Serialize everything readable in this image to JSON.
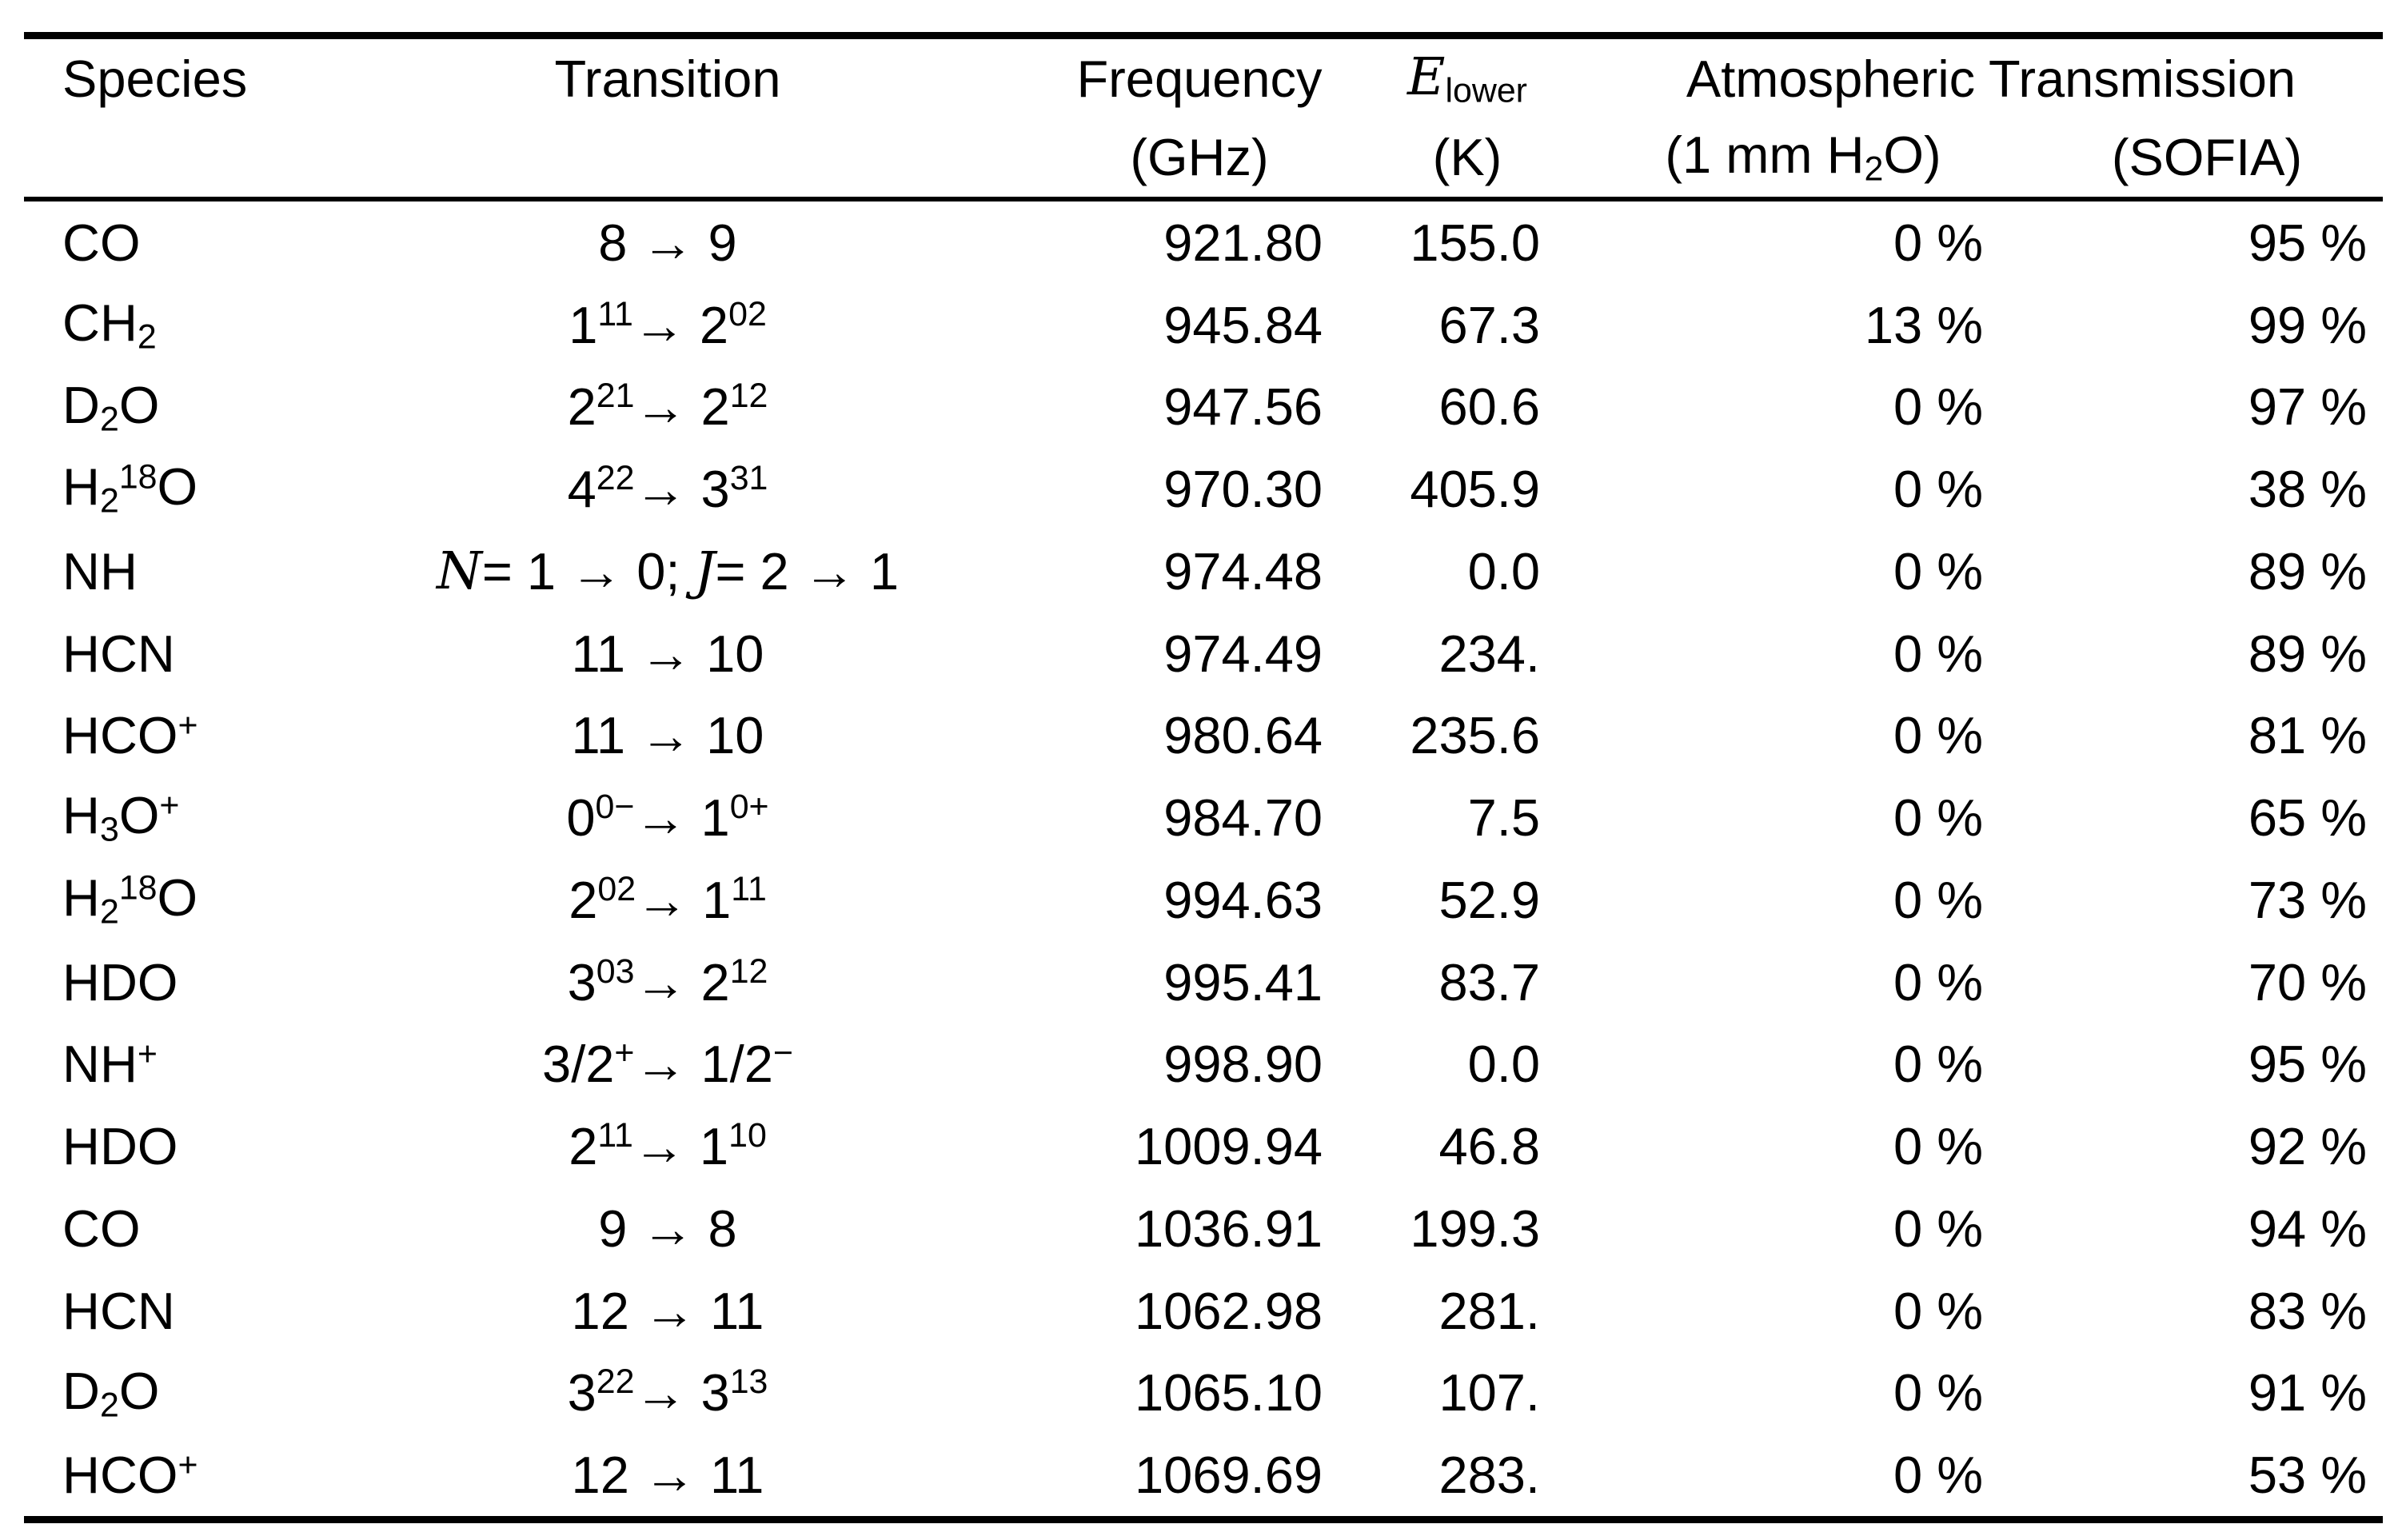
{
  "page": {
    "background_color": "#ffffff",
    "text_color": "#000000"
  },
  "table": {
    "header": {
      "species": "Species",
      "transition": "Transition",
      "frequency": "Frequency",
      "frequency_unit": "(GHz)",
      "e_lower": "*E*_{lower}",
      "e_lower_unit": "(K)",
      "atm_transmission_span": "Atmospheric Transmission",
      "atmospheric_unit": "(1 mm H_{2}O)",
      "sofia_unit": "(SOFIA)"
    },
    "rows": [
      {
        "species": "CO",
        "transition": "8 → 9",
        "frequency": "921.80",
        "e_lower": "155.0",
        "atmospheric": "0 %",
        "transmission": "95 %"
      },
      {
        "species": "CH_{2}",
        "transition": "1_{11} → 2_{02}",
        "frequency": "945.84",
        "e_lower": "67.3",
        "atmospheric": "13 %",
        "transmission": "99 %"
      },
      {
        "species": "D_{2}O",
        "transition": "2_{21} → 2_{12}",
        "frequency": "947.56",
        "e_lower": "60.6",
        "atmospheric": "0 %",
        "transmission": "97 %"
      },
      {
        "species": "H_{2}^{18}O",
        "transition": "4_{22} → 3_{31}",
        "frequency": "970.30",
        "e_lower": "405.9",
        "atmospheric": "0 %",
        "transmission": "38 %"
      },
      {
        "species": "NH",
        "transition": "*N* = 1 → 0;  *J* = 2 → 1",
        "frequency": "974.48",
        "e_lower": "0.0",
        "atmospheric": "0 %",
        "transmission": "89 %"
      },
      {
        "species": "HCN",
        "transition": "11 → 10",
        "frequency": "974.49",
        "e_lower": "234.",
        "atmospheric": "0 %",
        "transmission": "89 %"
      },
      {
        "species": "HCO^{+}",
        "transition": "11 → 10",
        "frequency": "980.64",
        "e_lower": "235.6",
        "atmospheric": "0 %",
        "transmission": "81 %"
      },
      {
        "species": "H_{3}O^{+}",
        "transition": "0_{0}^{−} → 1_{0}^{+}",
        "frequency": "984.70",
        "e_lower": "7.5",
        "atmospheric": "0 %",
        "transmission": "65 %"
      },
      {
        "species": "H_{2}^{18}O",
        "transition": "2_{02} → 1_{11}",
        "frequency": "994.63",
        "e_lower": "52.9",
        "atmospheric": "0 %",
        "transmission": "73 %"
      },
      {
        "species": "HDO",
        "transition": "3_{03} → 2_{12}",
        "frequency": "995.41",
        "e_lower": "83.7",
        "atmospheric": "0 %",
        "transmission": "70 %"
      },
      {
        "species": "NH^{+}",
        "transition": "3/2^{+} → 1/2^{−}",
        "frequency": "998.90",
        "e_lower": "0.0",
        "atmospheric": "0 %",
        "transmission": "95 %"
      },
      {
        "species": "HDO",
        "transition": "2_{11} → 1_{10}",
        "frequency": "1009.94",
        "e_lower": "46.8",
        "atmospheric": "0 %",
        "transmission": "92 %"
      },
      {
        "species": "CO",
        "transition": "9 → 8",
        "frequency": "1036.91",
        "e_lower": "199.3",
        "atmospheric": "0 %",
        "transmission": "94 %"
      },
      {
        "species": "HCN",
        "transition": "12 → 11",
        "frequency": "1062.98",
        "e_lower": "281.",
        "atmospheric": "0 %",
        "transmission": "83 %"
      },
      {
        "species": "D_{2}O",
        "transition": "3_{22} → 3_{13}",
        "frequency": "1065.10",
        "e_lower": "107.",
        "atmospheric": "0 %",
        "transmission": "91 %"
      },
      {
        "species": "HCO^{+}",
        "transition": "12 → 11",
        "frequency": "1069.69",
        "e_lower": "283.",
        "atmospheric": "0 %",
        "transmission": "53 %"
      }
    ]
  }
}
